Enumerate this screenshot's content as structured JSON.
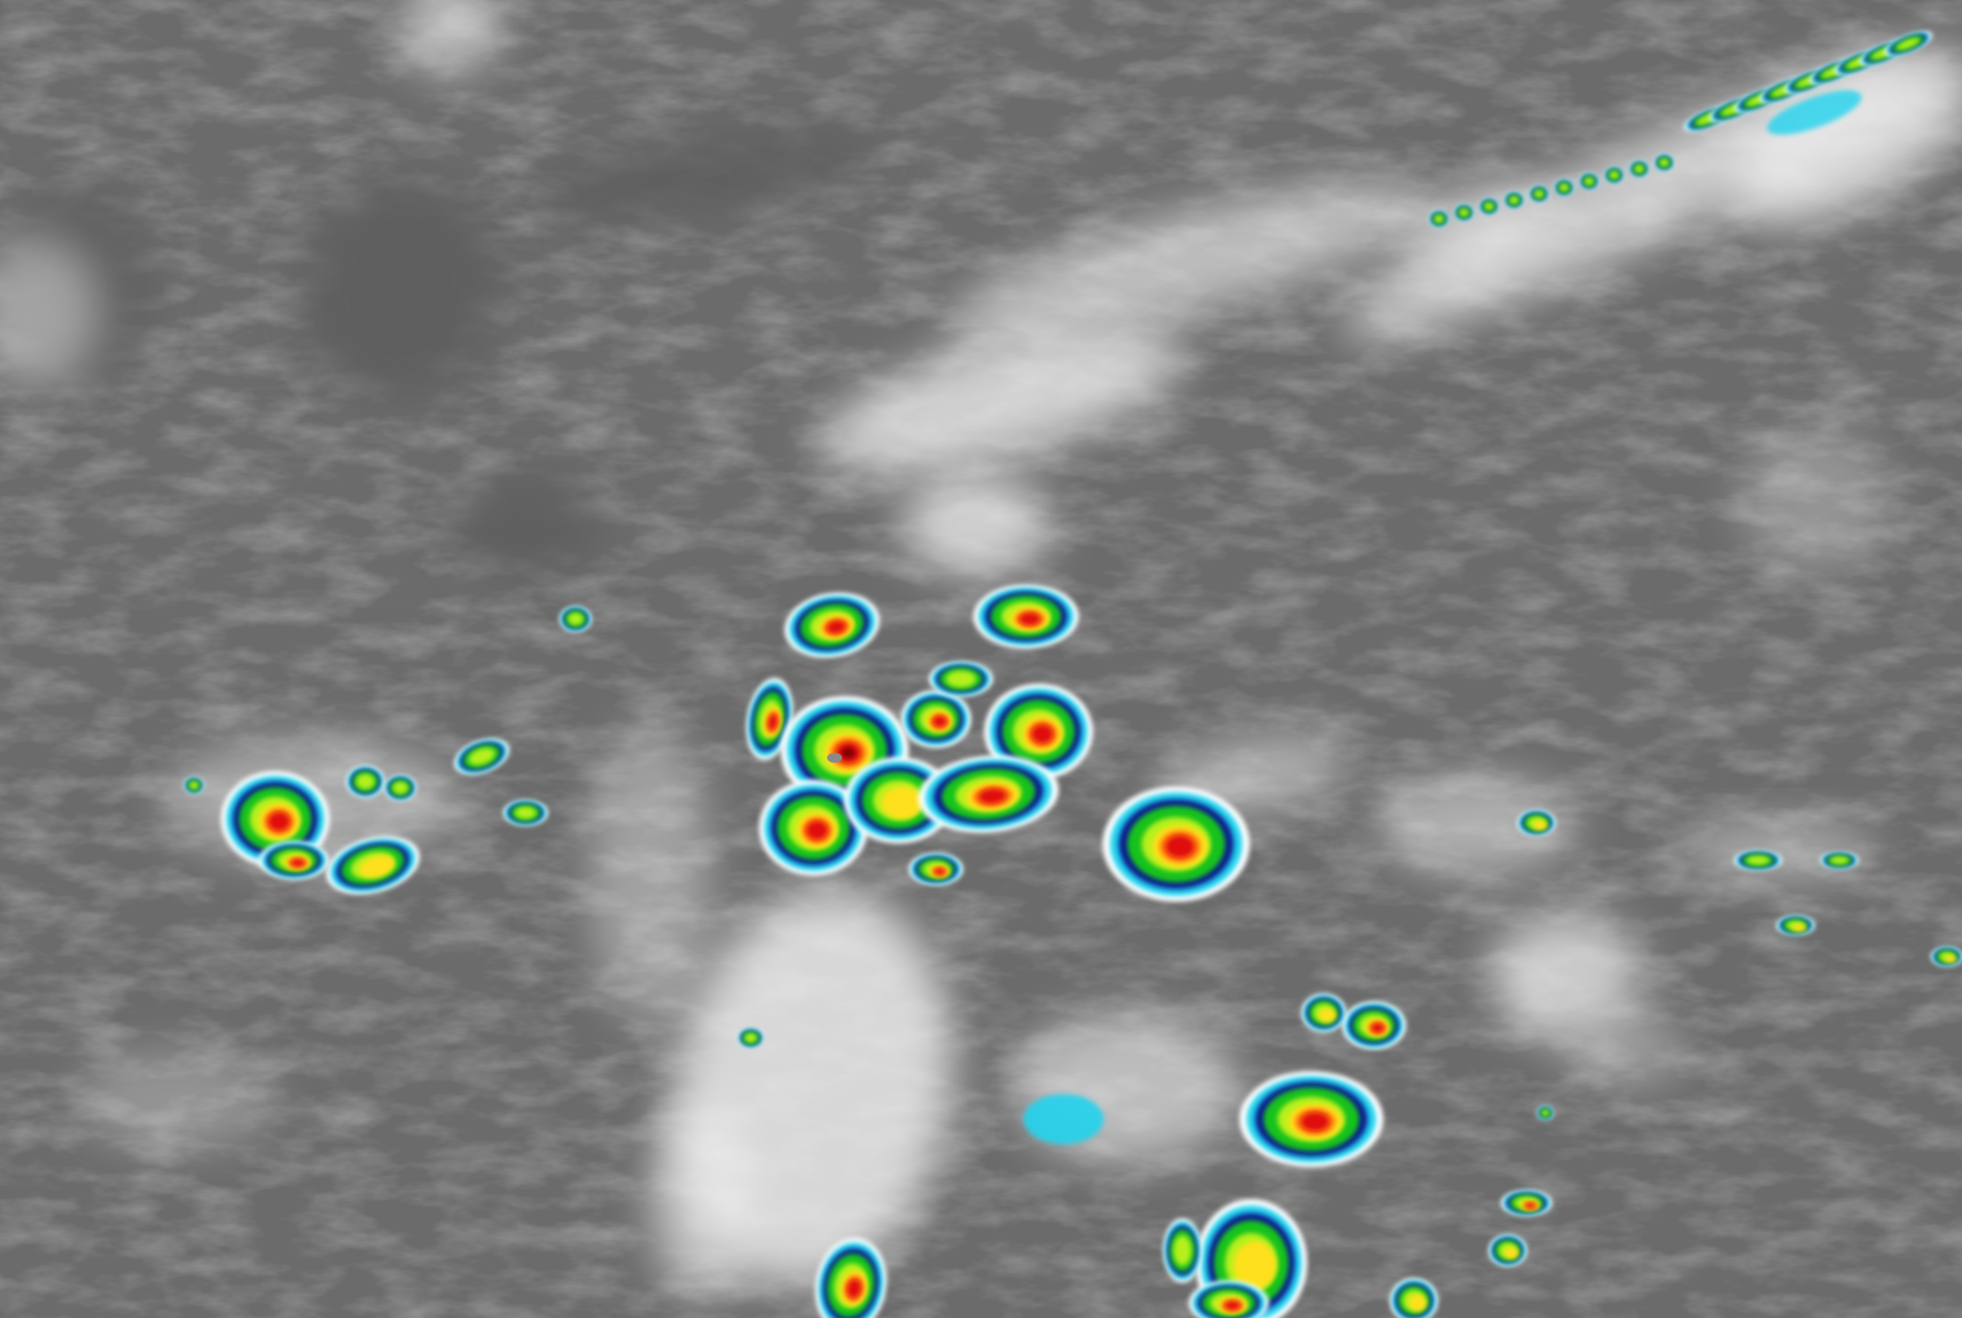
{
  "image": {
    "kind": "infrared satellite imagery",
    "background_color": "#6b6b6b",
    "cloud_color": "#f2f2f2",
    "enhancement_palette": [
      "#ffffff",
      "#22d3ee",
      "#0a1f8f",
      "#19c21a",
      "#b6f01e",
      "#ffe01a",
      "#ff7a10",
      "#e01010",
      "#7a0000",
      "#8a8a8a"
    ]
  }
}
